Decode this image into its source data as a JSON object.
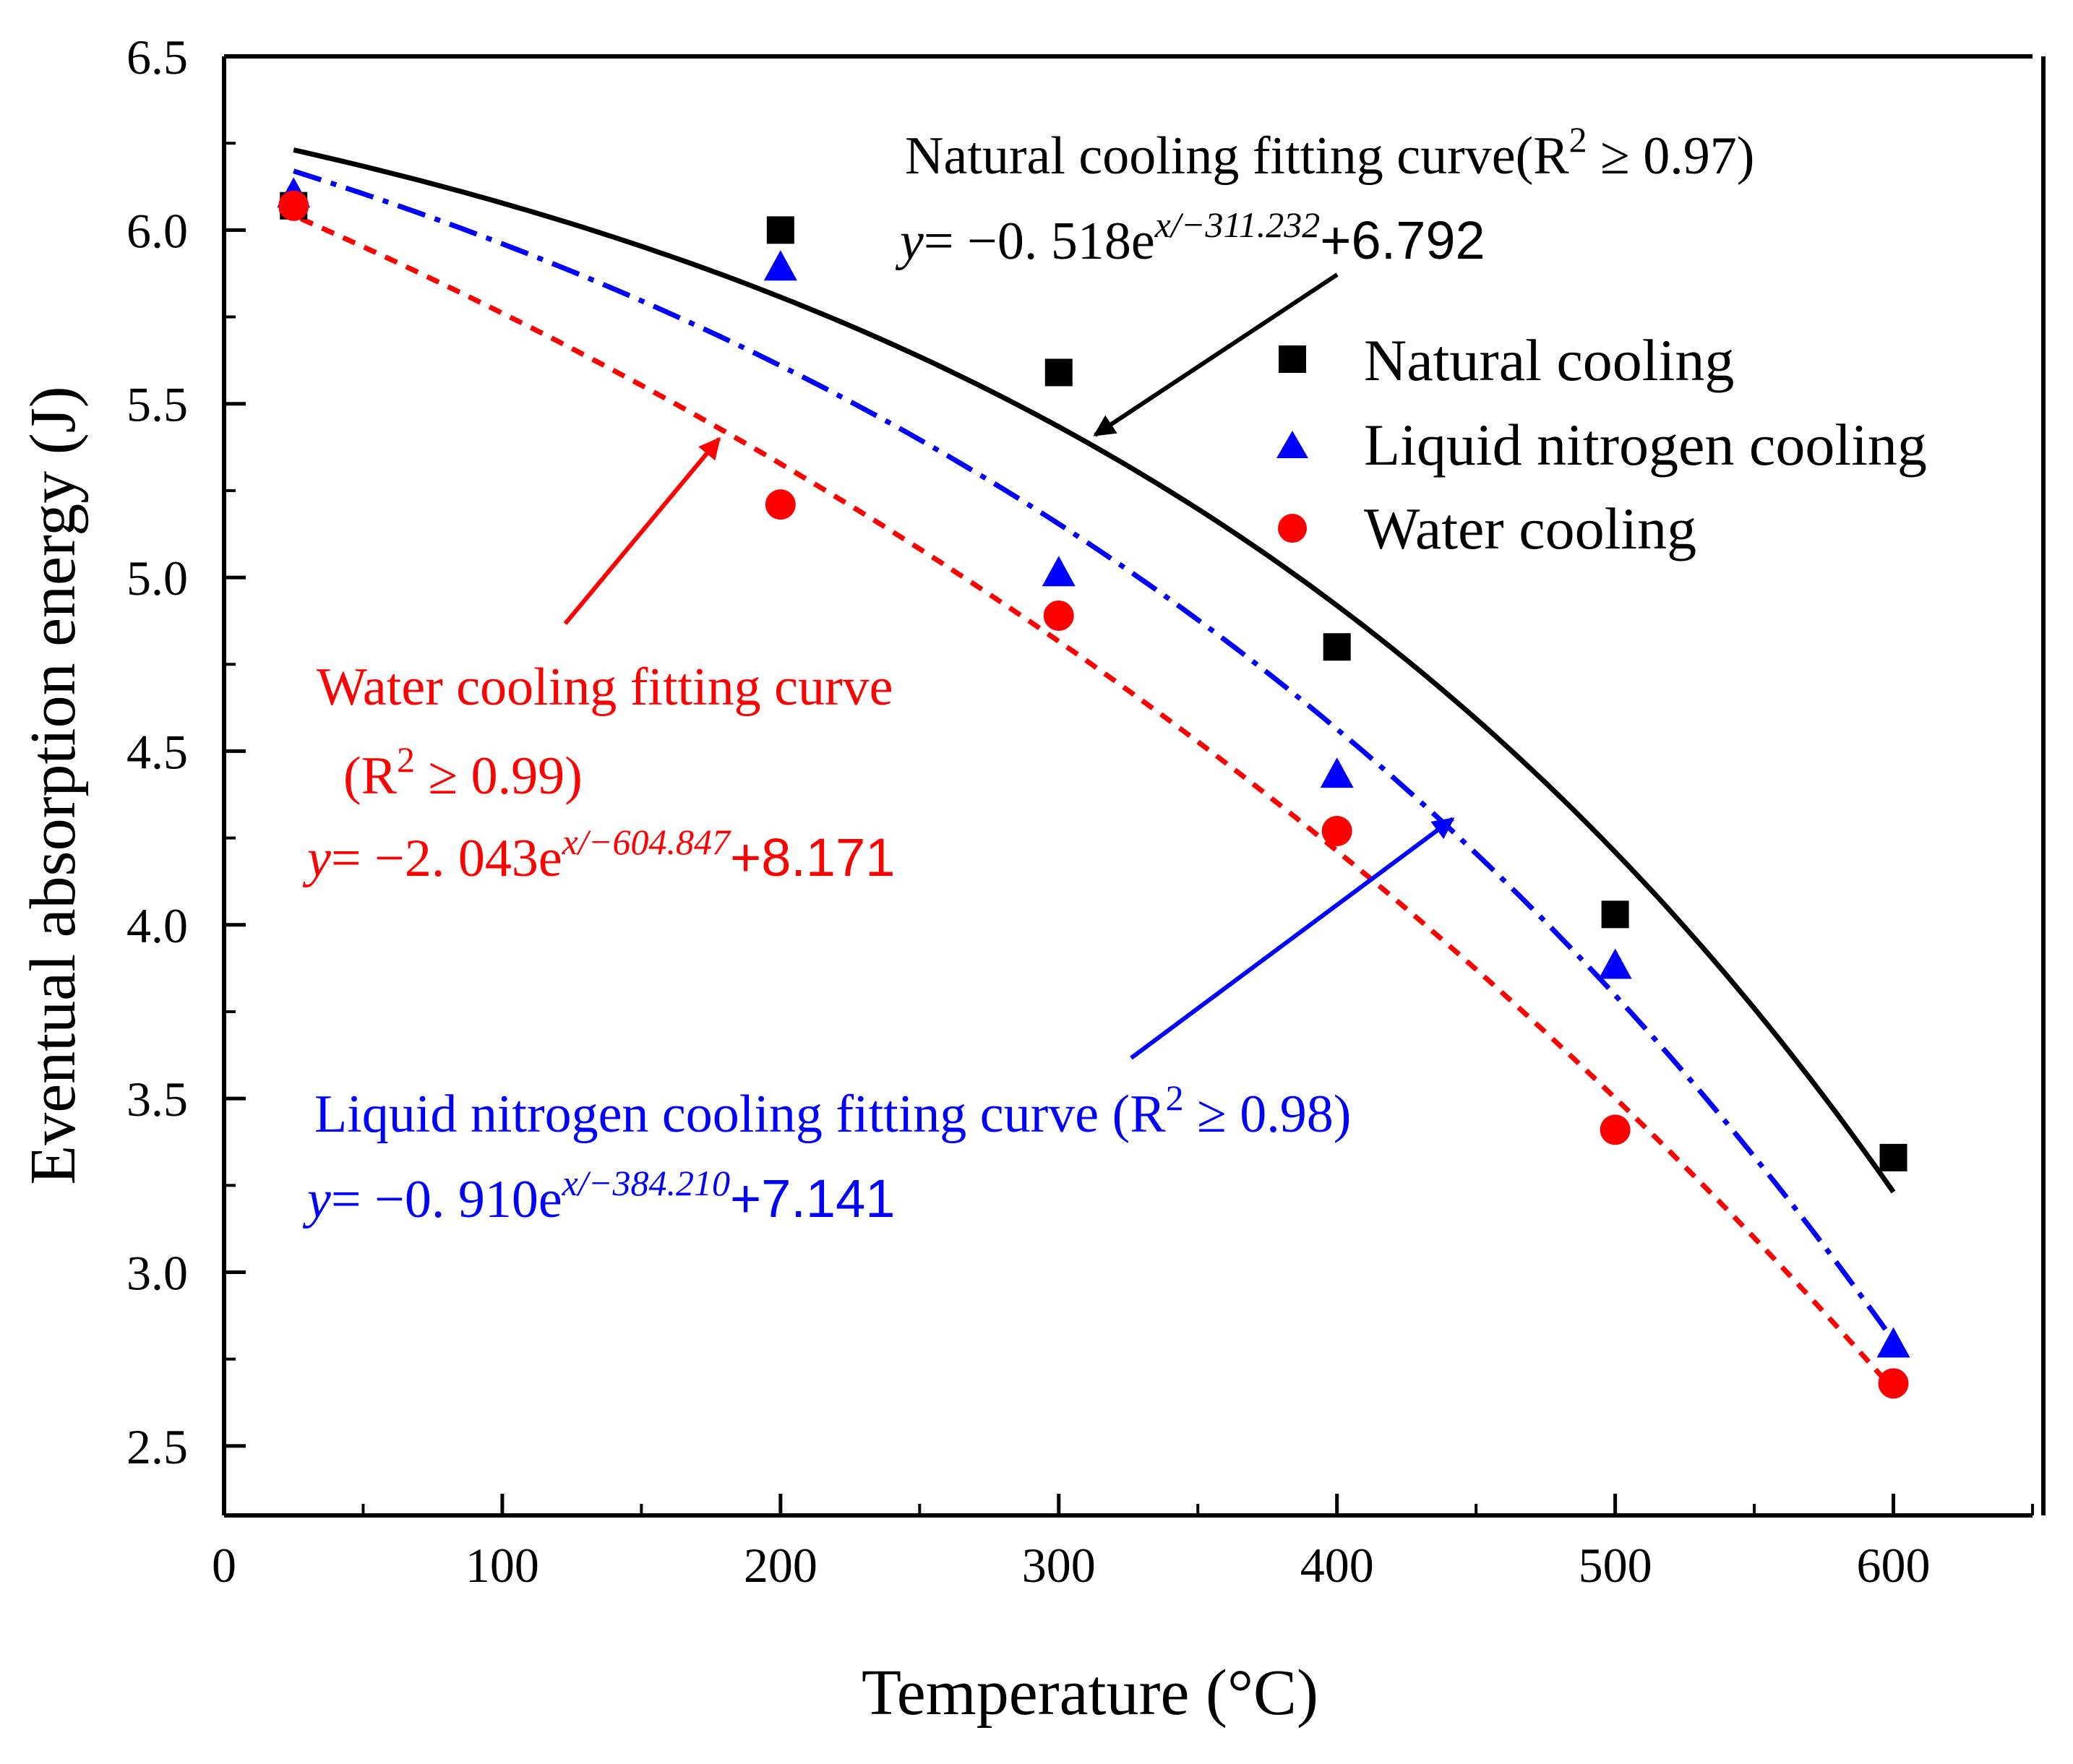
{
  "chart_data": {
    "type": "scatter",
    "title": "",
    "xlabel": "Temperature (°C)",
    "ylabel": "Eventual absorption energy (J)",
    "xlim": [
      0,
      650
    ],
    "ylim": [
      2.3,
      6.5
    ],
    "xticks": [
      "0",
      "100",
      "200",
      "300",
      "400",
      "500",
      "600"
    ],
    "yticks": [
      "2.5",
      "3.0",
      "3.5",
      "4.0",
      "4.5",
      "5.0",
      "5.5",
      "6.0",
      "6.5"
    ],
    "legend_position": "top-right",
    "series": [
      {
        "name": "Natural cooling",
        "marker": "square",
        "color": "#000000",
        "x": [
          25,
          200,
          300,
          400,
          500,
          600
        ],
        "y": [
          6.07,
          6.0,
          5.59,
          4.8,
          4.03,
          3.33
        ],
        "fit": {
          "a": 0.518,
          "t": 311.232,
          "c": 6.792,
          "x_range": [
            25,
            600
          ],
          "style": "solid"
        }
      },
      {
        "name": "Liquid nitrogen cooling",
        "marker": "triangle",
        "color": "#0000ff",
        "x": [
          25,
          200,
          300,
          400,
          500,
          600
        ],
        "y": [
          6.1,
          5.89,
          5.01,
          4.43,
          3.88,
          2.79
        ],
        "fit": {
          "a": 0.91,
          "t": 384.21,
          "c": 7.141,
          "x_range": [
            25,
            600
          ],
          "style": "dashdot"
        }
      },
      {
        "name": "Water cooling",
        "marker": "circle",
        "color": "#ff0000",
        "x": [
          25,
          200,
          300,
          400,
          500,
          600
        ],
        "y": [
          6.07,
          5.21,
          4.89,
          4.27,
          3.41,
          2.68
        ],
        "fit": {
          "a": 2.043,
          "t": 604.847,
          "c": 8.171,
          "x_range": [
            20,
            600
          ],
          "style": "dashed"
        }
      }
    ],
    "annotations": {
      "natural": {
        "title": "Natural cooling fitting curve(R",
        "r2_sup": "2",
        "r2_tail": " ≥ 0.97)",
        "eq_y": "y",
        "eq_coef": "= −0. 518e",
        "eq_exp": "x/−311.232",
        "eq_const": "+6.792"
      },
      "water": {
        "title": "Water cooling fitting curve",
        "r2_open": "(R",
        "r2_sup": "2",
        "r2_tail": " ≥ 0.99)",
        "eq_y": "y",
        "eq_coef": "= −2. 043e",
        "eq_exp": "x/−604.847",
        "eq_const": "+8.171"
      },
      "nitrogen": {
        "title": "Liquid nitrogen cooling fitting curve  (R",
        "r2_sup": "2",
        "r2_tail": " ≥ 0.98)",
        "eq_y": "y",
        "eq_coef": "= −0. 910e",
        "eq_exp": "x/−384.210",
        "eq_const": "+7.141"
      }
    }
  },
  "colors": {
    "natural": "#000000",
    "nitrogen": "#0000ff",
    "water": "#ff0000"
  }
}
